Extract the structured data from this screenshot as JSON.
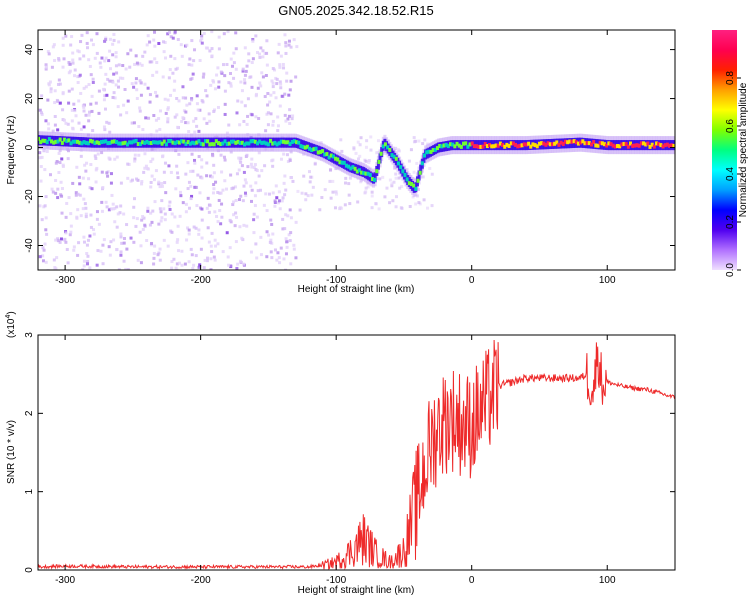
{
  "title": "GN05.2025.342.18.52.R15",
  "colors": {
    "axis": "#000000",
    "snr_line": "#ee2a2a",
    "scatter_faint": "#c8a6f0",
    "track_core": "#35d08a",
    "colormap": [
      "#f0e0ff",
      "#b070ff",
      "#5000f0",
      "#0000ff",
      "#00a0ff",
      "#00ffff",
      "#00ff80",
      "#80ff00",
      "#ffff00",
      "#ffa000",
      "#ff2000",
      "#ff0050",
      "#ff2080"
    ]
  },
  "chart_data": [
    {
      "type": "heatmap",
      "name": "spectrogram",
      "xlabel": "Height of straight line (km)",
      "ylabel": "Frequency (Hz)",
      "xlim": [
        -320,
        150
      ],
      "ylim": [
        -50,
        48
      ],
      "x_ticks": [
        -300,
        -200,
        -100,
        0,
        100
      ],
      "x_tick_labels": [
        "-300",
        "-200",
        "-100",
        "0",
        "100"
      ],
      "y_ticks": [
        -40,
        -20,
        0,
        20,
        40
      ],
      "y_tick_labels": [
        "-40",
        "-20",
        "0",
        "20",
        "40"
      ],
      "track": [
        {
          "x": -320,
          "y": 3
        },
        {
          "x": -280,
          "y": 2
        },
        {
          "x": -240,
          "y": 2
        },
        {
          "x": -200,
          "y": 2
        },
        {
          "x": -160,
          "y": 2
        },
        {
          "x": -130,
          "y": 2
        },
        {
          "x": -110,
          "y": -2
        },
        {
          "x": -100,
          "y": -5
        },
        {
          "x": -90,
          "y": -8
        },
        {
          "x": -80,
          "y": -10
        },
        {
          "x": -72,
          "y": -13
        },
        {
          "x": -65,
          "y": 2
        },
        {
          "x": -55,
          "y": -6
        },
        {
          "x": -48,
          "y": -13
        },
        {
          "x": -42,
          "y": -17
        },
        {
          "x": -35,
          "y": -3
        },
        {
          "x": -25,
          "y": 0
        },
        {
          "x": -15,
          "y": 1
        },
        {
          "x": 0,
          "y": 1
        },
        {
          "x": 40,
          "y": 1
        },
        {
          "x": 80,
          "y": 2
        },
        {
          "x": 100,
          "y": 1
        },
        {
          "x": 150,
          "y": 1
        }
      ],
      "colorbar": {
        "label": "Normalized spectral amplitude",
        "range": [
          0,
          1
        ],
        "ticks": [
          0,
          0.2,
          0.4,
          0.6,
          0.8
        ],
        "tick_labels": [
          "0.0",
          "0.2",
          "0.4",
          "0.6",
          "0.8"
        ]
      }
    },
    {
      "type": "line",
      "name": "snr",
      "xlabel": "Height of straight line (km)",
      "ylabel": "SNR (10 * v/v)",
      "multiplier_label": "(x10",
      "multiplier_exponent": "4",
      "multiplier_close": ")",
      "xlim": [
        -320,
        150
      ],
      "ylim": [
        0,
        3
      ],
      "x_ticks": [
        -300,
        -200,
        -100,
        0,
        100
      ],
      "x_tick_labels": [
        "-300",
        "-200",
        "-100",
        "0",
        "100"
      ],
      "y_ticks": [
        0,
        1,
        2,
        3
      ],
      "y_tick_labels": [
        "0",
        "1",
        "2",
        "3"
      ],
      "series": [
        {
          "x": [
            -320,
            -300,
            -250,
            -200,
            -150,
            -120,
            -110,
            -100,
            -90,
            -80,
            -70,
            -60,
            -50,
            -45,
            -40,
            -35,
            -30,
            -25,
            -20,
            -15,
            -10,
            -5,
            0,
            5,
            10,
            15,
            20,
            30,
            40,
            50,
            60,
            70,
            80,
            85,
            90,
            93,
            96,
            100,
            110,
            120,
            130,
            140,
            150
          ],
          "y": [
            0.04,
            0.05,
            0.04,
            0.04,
            0.04,
            0.04,
            0.06,
            0.1,
            0.22,
            0.4,
            0.2,
            0.1,
            0.25,
            0.55,
            0.9,
            1.3,
            1.6,
            1.8,
            1.9,
            1.95,
            1.9,
            1.85,
            1.85,
            2.0,
            2.1,
            2.25,
            2.35,
            2.4,
            2.45,
            2.45,
            2.45,
            2.45,
            2.45,
            2.5,
            2.3,
            2.8,
            2.4,
            2.4,
            2.35,
            2.32,
            2.3,
            2.25,
            2.2
          ]
        }
      ]
    }
  ]
}
